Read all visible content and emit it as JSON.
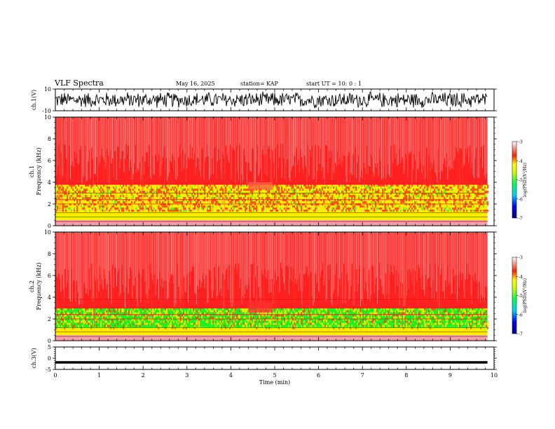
{
  "header": {
    "title": "VLF Spectra",
    "date": "May 16, 2025",
    "station": "station= KAP",
    "start": "start  UT  =   10: 0  : 1"
  },
  "colors": {
    "spec_high": "#ff2020",
    "spec_mid": "#ffee00",
    "spec_low": "#22ee22",
    "axis": "#000000"
  },
  "chart_data": [
    {
      "type": "line",
      "name": "ch1-waveform",
      "ylabel": "ch.1(V)",
      "ylim": [
        -10,
        10
      ],
      "y_ticks": [
        "10",
        "-10"
      ],
      "xlim": [
        0,
        10
      ],
      "data_extent_min": 9.85,
      "description_values": "noisy oscillation spanning approx -8 to 8 V"
    },
    {
      "type": "heatmap",
      "name": "ch1-spectrogram",
      "ylabel": "ch.1",
      "ylabel2": "Frequency (kHz)",
      "ylim": [
        0,
        10
      ],
      "y_ticks": [
        "0",
        "2",
        "4",
        "6",
        "8",
        "10"
      ],
      "xlim": [
        0,
        10
      ],
      "data_extent_min": 9.85,
      "bands_khz": [
        {
          "from": 0.5,
          "to": 1.3,
          "level": "-4.3"
        },
        {
          "from": 1.3,
          "to": 3.8,
          "level": "-4.6"
        },
        {
          "from": 3.8,
          "to": 10,
          "level": "-3.5"
        }
      ],
      "colorbar": {
        "label": "log(PSD)(V²/Hz)",
        "ticks": [
          "-3",
          "-4",
          "-5",
          "-6",
          "-7"
        ],
        "range": [
          -7,
          -3
        ]
      }
    },
    {
      "type": "heatmap",
      "name": "ch2-spectrogram",
      "ylabel": "ch.2",
      "ylabel2": "Frequency (kHz)",
      "ylim": [
        0,
        10
      ],
      "y_ticks": [
        "0",
        "2",
        "4",
        "6",
        "8",
        "10"
      ],
      "xlim": [
        0,
        10
      ],
      "data_extent_min": 9.85,
      "bands_khz": [
        {
          "from": 0.5,
          "to": 1.2,
          "level": "-4.3"
        },
        {
          "from": 1.2,
          "to": 3.0,
          "level": "-5.2"
        },
        {
          "from": 3.0,
          "to": 10,
          "level": "-3.5"
        }
      ],
      "colorbar": {
        "label": "log(PSD)(V²/Hz)",
        "ticks": [
          "-3",
          "-4",
          "-5",
          "-6",
          "-7"
        ],
        "range": [
          -7,
          -3
        ]
      }
    },
    {
      "type": "line",
      "name": "ch3-waveform",
      "ylabel": "ch.3(V)",
      "ylim": [
        -5,
        5
      ],
      "y_ticks": [
        "5",
        "0",
        "-5"
      ],
      "xlim": [
        0,
        10
      ],
      "data_extent_min": 9.85,
      "description_values": "thick trace near -1.8 V"
    }
  ],
  "xaxis": {
    "label": "Time  (min)",
    "ticks": [
      "0",
      "1",
      "2",
      "3",
      "4",
      "5",
      "6",
      "7",
      "8",
      "9",
      "10"
    ]
  }
}
